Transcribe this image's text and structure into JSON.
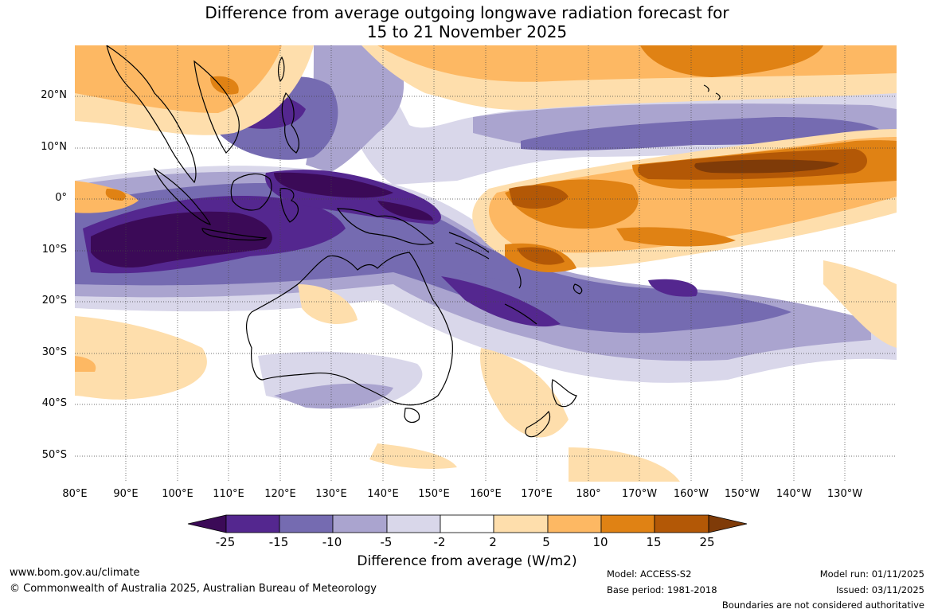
{
  "title": {
    "line1": "Difference from average outgoing longwave radiation forecast for",
    "line2": "15 to 21 November 2025"
  },
  "map": {
    "lat_labels": [
      "20°N",
      "10°N",
      "0°",
      "10°S",
      "20°S",
      "30°S",
      "40°S",
      "50°S"
    ],
    "lon_labels": [
      "80°E",
      "90°E",
      "100°E",
      "110°E",
      "120°E",
      "130°E",
      "140°E",
      "150°E",
      "160°E",
      "170°E",
      "180°",
      "170°W",
      "160°W",
      "150°W",
      "140°W",
      "130°W"
    ],
    "extent": {
      "lon_min": 80,
      "lon_max": 240,
      "lat_min": -55,
      "lat_max": 30
    }
  },
  "colorbar": {
    "labels": [
      "-25",
      "-15",
      "-10",
      "-5",
      "-2",
      "2",
      "5",
      "10",
      "15",
      "25"
    ],
    "colors": [
      "#3b0a57",
      "#54278f",
      "#756bb1",
      "#aaa4cf",
      "#d9d7ea",
      "#ffffff",
      "#fedeac",
      "#fdb863",
      "#e08214",
      "#b35806",
      "#7f3b08"
    ],
    "title": "Difference from average (W/m2)"
  },
  "footer": {
    "url": "www.bom.gov.au/climate",
    "copyright": "© Commonwealth of Australia 2025, Australian Bureau of Meteorology",
    "model": "Model: ACCESS-S2",
    "base_period": "Base period: 1981-2018",
    "model_run": "Model run: 01/11/2025",
    "issued": "Issued: 03/11/2025",
    "disclaimer": "Boundaries are not considered authoritative"
  }
}
